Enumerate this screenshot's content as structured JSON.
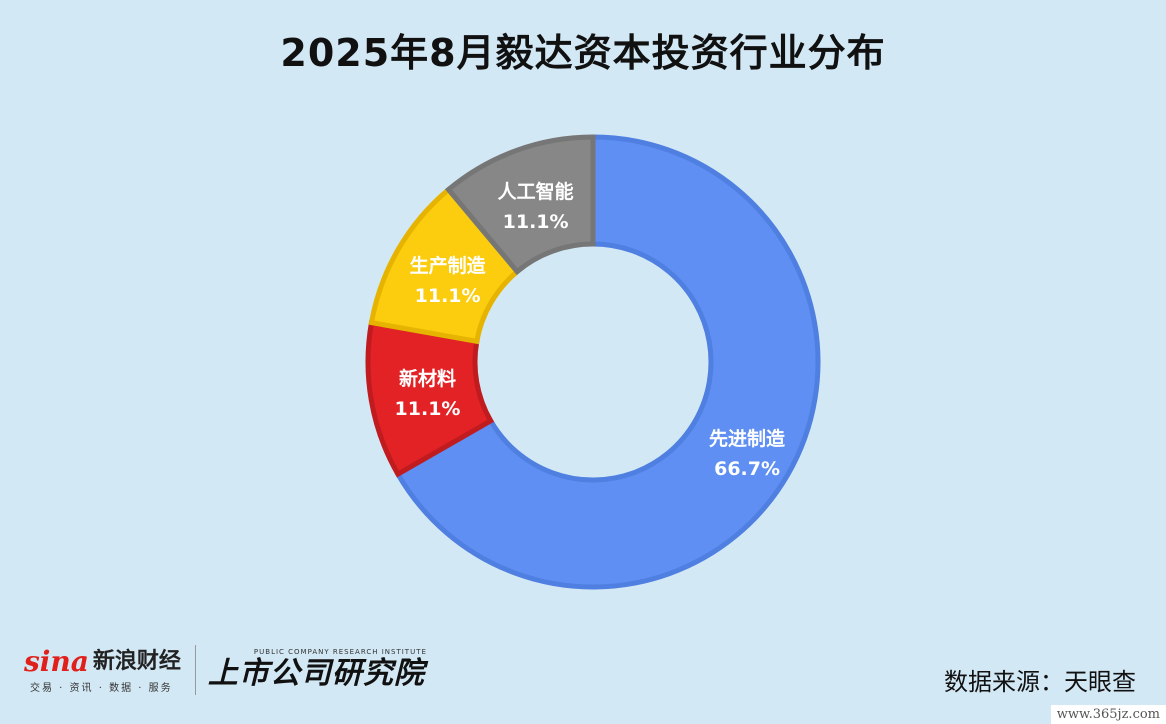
{
  "title": "2025年8月毅达资本投资行业分布",
  "chart_data": {
    "type": "pie",
    "donut": true,
    "title": "2025年8月毅达资本投资行业分布",
    "slices": [
      {
        "label": "先进制造",
        "value": 66.7,
        "display": "66.7%",
        "color": "#5f8ff2",
        "border": "#4f7fe0"
      },
      {
        "label": "新材料",
        "value": 11.1,
        "display": "11.1%",
        "color": "#e32226",
        "border": "#c01c1f"
      },
      {
        "label": "生产制造",
        "value": 11.1,
        "display": "11.1%",
        "color": "#fbcd0e",
        "border": "#e6b400"
      },
      {
        "label": "人工智能",
        "value": 11.1,
        "display": "11.1%",
        "color": "#878787",
        "border": "#767676"
      }
    ]
  },
  "footer": {
    "sina_mark": "sina",
    "sina_cn": "新浪财经",
    "sina_sub": "交易 · 资讯 · 数据 · 服务",
    "research_en": "PUBLIC COMPANY RESEARCH INSTITUTE",
    "research_cn": "上市公司研究院",
    "source": "数据来源：天眼查"
  },
  "watermark": "www.365jz.com"
}
